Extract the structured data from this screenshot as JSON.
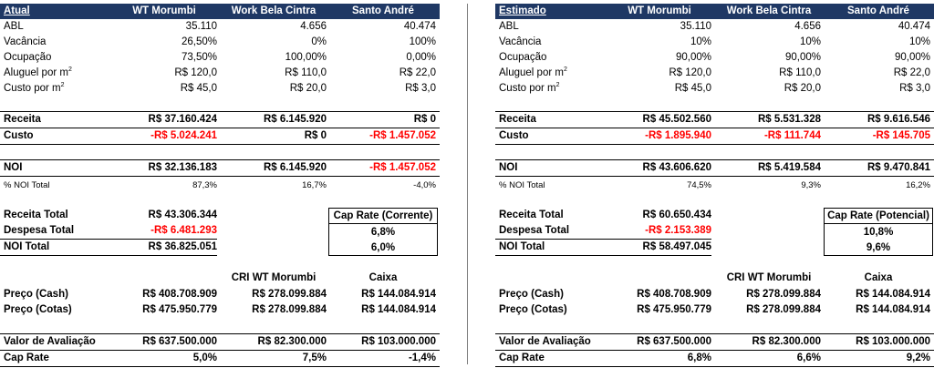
{
  "left": {
    "title": "Atual",
    "columns": [
      "WT Morumbi",
      "Work Bela Cintra",
      "Santo André"
    ],
    "metrics": [
      {
        "label": "ABL",
        "values": [
          "35.110",
          "4.656",
          "40.474"
        ]
      },
      {
        "label": "Vacância",
        "values": [
          "26,50%",
          "0%",
          "100%"
        ]
      },
      {
        "label": "Ocupação",
        "values": [
          "73,50%",
          "100,00%",
          "0,00%"
        ]
      },
      {
        "label": "Aluguel por m",
        "sup": "2",
        "values": [
          "R$ 120,0",
          "R$ 110,0",
          "R$ 22,0"
        ]
      },
      {
        "label": "Custo por m",
        "sup": "2",
        "values": [
          "R$ 45,0",
          "R$ 20,0",
          "R$ 3,0"
        ]
      }
    ],
    "receita": {
      "label": "Receita",
      "values": [
        "R$ 37.160.424",
        "R$ 6.145.920",
        "R$ 0"
      ]
    },
    "custo": {
      "label": "Custo",
      "values": [
        "-R$ 5.024.241",
        "R$ 0",
        "-R$ 1.457.052"
      ]
    },
    "noi": {
      "label": "NOI",
      "values": [
        "R$ 32.136.183",
        "R$ 6.145.920",
        "-R$ 1.457.052"
      ]
    },
    "noi_pct": {
      "label": "% NOI Total",
      "values": [
        "87,3%",
        "16,7%",
        "-4,0%"
      ]
    },
    "receita_total": {
      "label": "Receita Total",
      "value": "R$ 43.306.344"
    },
    "despesa_total": {
      "label": "Despesa Total",
      "value": "-R$ 6.481.293"
    },
    "noi_total": {
      "label": "NOI Total",
      "value": "R$ 36.825.051"
    },
    "cap_box": {
      "title": "Cap Rate (Corrente)",
      "value1": "6,8%",
      "value2": "6,0%"
    },
    "price_columns": [
      "CRI WT Morumbi",
      "Caixa"
    ],
    "preco_cash": {
      "label": "Preço (Cash)",
      "values": [
        "R$ 408.708.909",
        "R$ 278.099.884",
        "R$ 144.084.914"
      ]
    },
    "preco_cotas": {
      "label": "Preço (Cotas)",
      "values": [
        "R$ 475.950.779",
        "R$ 278.099.884",
        "R$ 144.084.914"
      ]
    },
    "valor_avaliacao": {
      "label": "Valor de Avaliação",
      "values": [
        "R$ 637.500.000",
        "R$ 82.300.000",
        "R$ 103.000.000"
      ]
    },
    "cap_rate": {
      "label": "Cap Rate",
      "values": [
        "5,0%",
        "7,5%",
        "-1,4%"
      ]
    }
  },
  "right": {
    "title": "Estimado",
    "columns": [
      "WT Morumbi",
      "Work Bela Cintra",
      "Santo André"
    ],
    "metrics": [
      {
        "label": "ABL",
        "values": [
          "35.110",
          "4.656",
          "40.474"
        ]
      },
      {
        "label": "Vacância",
        "values": [
          "10%",
          "10%",
          "10%"
        ]
      },
      {
        "label": "Ocupação",
        "values": [
          "90,00%",
          "90,00%",
          "90,00%"
        ]
      },
      {
        "label": "Aluguel por m",
        "sup": "2",
        "values": [
          "R$ 120,0",
          "R$ 110,0",
          "R$ 22,0"
        ]
      },
      {
        "label": "Custo por m",
        "sup": "2",
        "values": [
          "R$ 45,0",
          "R$ 20,0",
          "R$ 3,0"
        ]
      }
    ],
    "receita": {
      "label": "Receita",
      "values": [
        "R$ 45.502.560",
        "R$ 5.531.328",
        "R$ 9.616.546"
      ]
    },
    "custo": {
      "label": "Custo",
      "values": [
        "-R$ 1.895.940",
        "-R$ 111.744",
        "-R$ 145.705"
      ]
    },
    "noi": {
      "label": "NOI",
      "values": [
        "R$ 43.606.620",
        "R$ 5.419.584",
        "R$ 9.470.841"
      ]
    },
    "noi_pct": {
      "label": "% NOI Total",
      "values": [
        "74,5%",
        "9,3%",
        "16,2%"
      ]
    },
    "receita_total": {
      "label": "Receita Total",
      "value": "R$ 60.650.434"
    },
    "despesa_total": {
      "label": "Despesa Total",
      "value": "-R$ 2.153.389"
    },
    "noi_total": {
      "label": "NOI Total",
      "value": "R$ 58.497.045"
    },
    "cap_box": {
      "title": "Cap Rate (Potencial)",
      "value1": "10,8%",
      "value2": "9,6%"
    },
    "price_columns": [
      "CRI WT Morumbi",
      "Caixa"
    ],
    "preco_cash": {
      "label": "Preço (Cash)",
      "values": [
        "R$ 408.708.909",
        "R$ 278.099.884",
        "R$ 144.084.914"
      ]
    },
    "preco_cotas": {
      "label": "Preço (Cotas)",
      "values": [
        "R$ 475.950.779",
        "R$ 278.099.884",
        "R$ 144.084.914"
      ]
    },
    "valor_avaliacao": {
      "label": "Valor de Avaliação",
      "values": [
        "R$ 637.500.000",
        "R$ 82.300.000",
        "R$ 103.000.000"
      ]
    },
    "cap_rate": {
      "label": "Cap Rate",
      "values": [
        "6,8%",
        "6,6%",
        "9,2%"
      ]
    }
  },
  "colors": {
    "header_bg": "#1f3864",
    "negative": "#ff0000"
  }
}
